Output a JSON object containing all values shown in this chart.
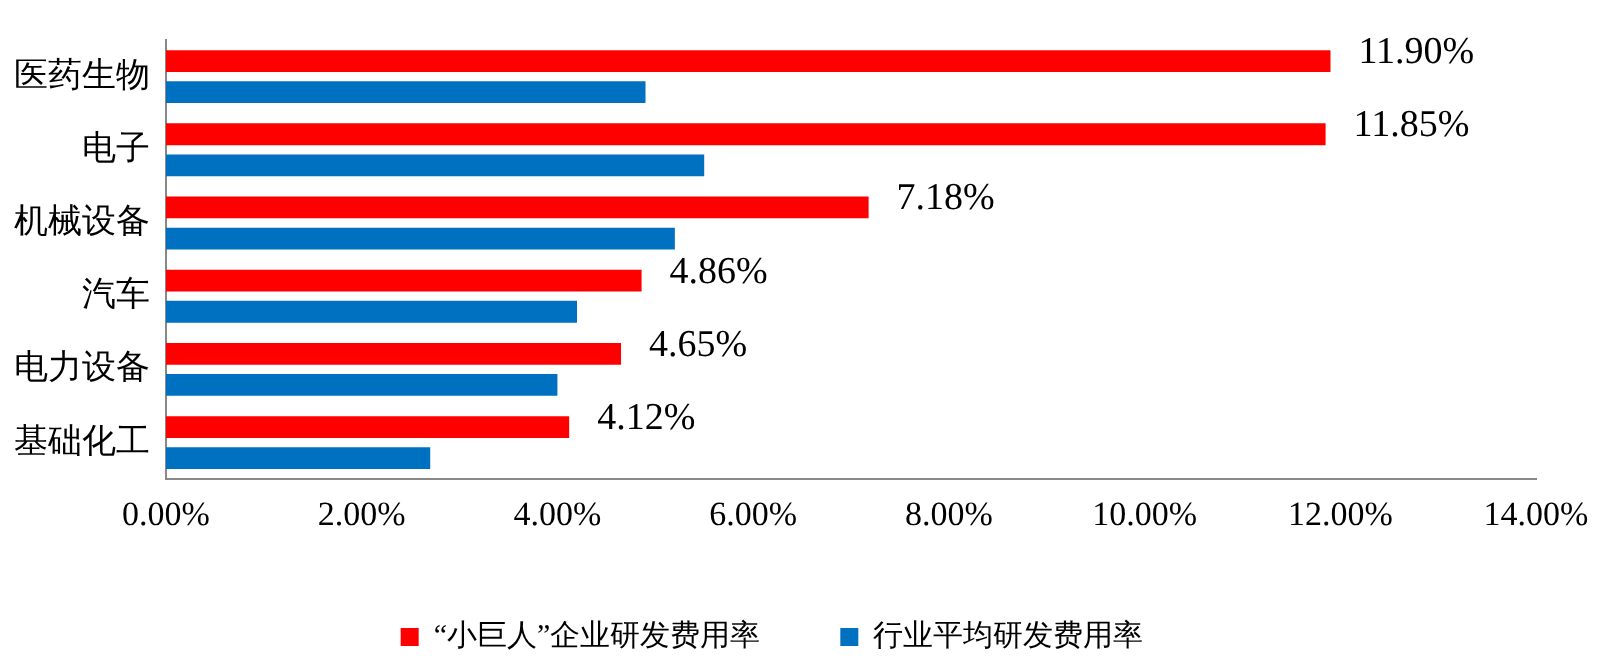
{
  "chart_data": {
    "type": "bar",
    "orientation": "horizontal",
    "categories": [
      "医药生物",
      "电子",
      "机械设备",
      "汽车",
      "电力设备",
      "基础化工"
    ],
    "series": [
      {
        "name": "“小巨人”企业研发费用率",
        "color": "#ff0000",
        "values": [
          11.9,
          11.85,
          7.18,
          4.86,
          4.65,
          4.12
        ],
        "value_labels": [
          "11.90%",
          "11.85%",
          "7.18%",
          "4.86%",
          "4.65%",
          "4.12%"
        ]
      },
      {
        "name": "行业平均研发费用率",
        "color": "#0070c0",
        "values": [
          4.9,
          5.5,
          5.2,
          4.2,
          4.0,
          2.7
        ]
      }
    ],
    "xlim": [
      0,
      14
    ],
    "xticks": [
      {
        "value": 0,
        "label": "0.00%"
      },
      {
        "value": 2,
        "label": "2.00%"
      },
      {
        "value": 4,
        "label": "4.00%"
      },
      {
        "value": 6,
        "label": "6.00%"
      },
      {
        "value": 8,
        "label": "8.00%"
      },
      {
        "value": 10,
        "label": "10.00%"
      },
      {
        "value": 12,
        "label": "12.00%"
      },
      {
        "value": 14,
        "label": "14.00%"
      }
    ],
    "grid": false,
    "legend": "bottom"
  }
}
